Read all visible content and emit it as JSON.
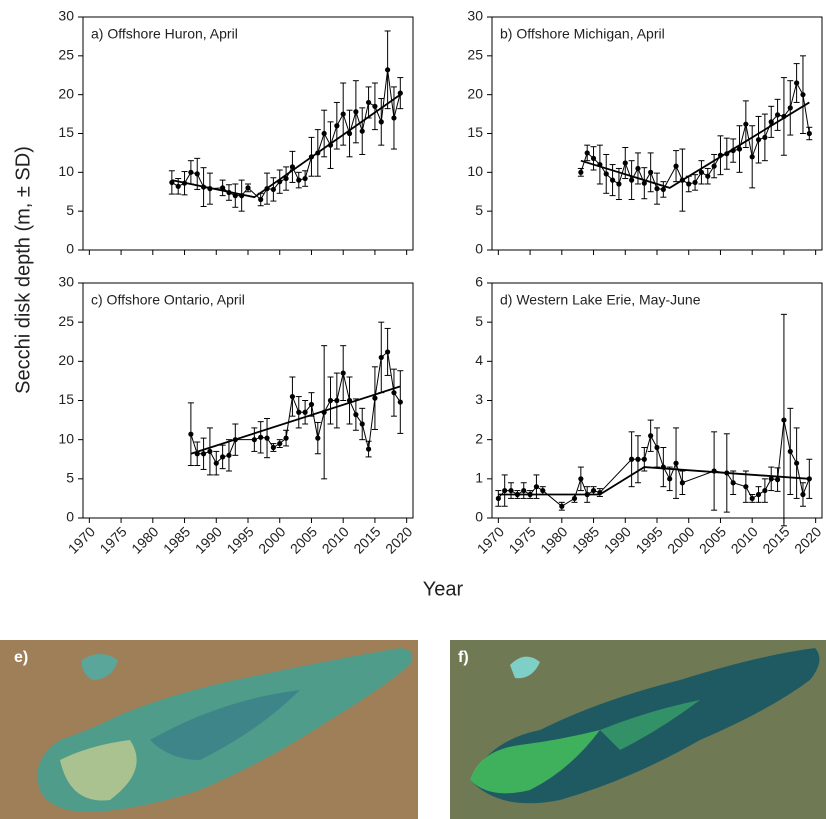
{
  "y_label": "Secchi disk depth (m, ± SD)",
  "x_label": "Year",
  "images": [
    {
      "label": "e)"
    },
    {
      "label": "f)"
    }
  ],
  "chart_data": [
    {
      "type": "line",
      "title": "a) Offshore Huron, April",
      "color": "#000000",
      "xlim": [
        1969,
        2021
      ],
      "xticks": [
        1970,
        1975,
        1980,
        1985,
        1990,
        1995,
        2000,
        2005,
        2010,
        2015,
        2020
      ],
      "ylim": [
        0,
        30
      ],
      "yticks": [
        0,
        5,
        10,
        15,
        20,
        25,
        30
      ],
      "x": [
        1983,
        1984,
        1985,
        1986,
        1987,
        1988,
        1989,
        1991,
        1992,
        1993,
        1994,
        1995,
        1997,
        1998,
        1999,
        2000,
        2001,
        2002,
        2003,
        2004,
        2005,
        2006,
        2007,
        2008,
        2009,
        2010,
        2011,
        2012,
        2013,
        2014,
        2015,
        2016,
        2017,
        2018,
        2019
      ],
      "values": [
        8.7,
        8.2,
        8.6,
        10,
        9.8,
        8.1,
        7.9,
        8,
        7.4,
        7,
        7,
        8,
        6.5,
        7.9,
        7.8,
        8.8,
        9.2,
        10.7,
        9,
        9.2,
        12,
        12.5,
        15,
        13.5,
        16,
        17.5,
        15,
        17.8,
        15.3,
        19,
        18.5,
        16.5,
        23.2,
        17,
        20.2
      ],
      "errors": [
        1.5,
        1,
        1.5,
        1.5,
        2,
        2.5,
        2,
        1,
        1,
        1.5,
        2,
        0.5,
        0.8,
        2,
        1.5,
        1.5,
        1.5,
        2,
        1,
        1,
        2.5,
        3,
        3,
        3,
        3,
        4,
        3,
        4,
        3,
        2,
        3,
        3,
        5,
        4,
        2
      ],
      "trend_x": [
        1983,
        1996,
        2019
      ],
      "trend_values": [
        9,
        6.8,
        20
      ]
    },
    {
      "type": "line",
      "title": "b) Offshore Michigan, April",
      "color": "#000000",
      "xlim": [
        1969,
        2021
      ],
      "xticks": [
        1970,
        1975,
        1980,
        1985,
        1990,
        1995,
        2000,
        2005,
        2010,
        2015,
        2020
      ],
      "ylim": [
        0,
        30
      ],
      "yticks": [
        0,
        5,
        10,
        15,
        20,
        25,
        30
      ],
      "x": [
        1983,
        1984,
        1985,
        1986,
        1987,
        1988,
        1989,
        1990,
        1991,
        1992,
        1993,
        1994,
        1995,
        1996,
        1998,
        1999,
        2000,
        2001,
        2002,
        2003,
        2004,
        2005,
        2006,
        2007,
        2008,
        2009,
        2010,
        2011,
        2012,
        2013,
        2014,
        2015,
        2016,
        2017,
        2018,
        2019
      ],
      "values": [
        10,
        12.5,
        11.8,
        11,
        9.8,
        9,
        8.5,
        11.2,
        9,
        10.5,
        8.6,
        10,
        7.9,
        7.8,
        10.8,
        9,
        8.5,
        8.7,
        10,
        9.5,
        10.8,
        12.2,
        12.4,
        12.8,
        13,
        16.2,
        12,
        14.2,
        14.5,
        16.5,
        17.4,
        17.2,
        18.3,
        21.5,
        20,
        15
      ],
      "errors": [
        0.5,
        1,
        1.5,
        2.5,
        2.5,
        2,
        2,
        2,
        2.5,
        2,
        2,
        2.5,
        2,
        1,
        2,
        4,
        1,
        1,
        1.5,
        1,
        1.5,
        2.5,
        2,
        1.5,
        3,
        3,
        4,
        3,
        3,
        2,
        2,
        5,
        3.5,
        2.5,
        5,
        0.8
      ],
      "trend_x": [
        1983,
        1997,
        2019
      ],
      "trend_values": [
        11.5,
        8,
        19
      ]
    },
    {
      "type": "line",
      "title": "c) Offshore Ontario, April",
      "color": "#000000",
      "xlim": [
        1969,
        2021
      ],
      "xticks": [
        1970,
        1975,
        1980,
        1985,
        1990,
        1995,
        2000,
        2005,
        2010,
        2015,
        2020
      ],
      "ylim": [
        0,
        30
      ],
      "yticks": [
        0,
        5,
        10,
        15,
        20,
        25,
        30
      ],
      "x": [
        1986,
        1987,
        1988,
        1989,
        1990,
        1991,
        1992,
        1993,
        1996,
        1997,
        1998,
        1999,
        2000,
        2001,
        2002,
        2003,
        2004,
        2005,
        2006,
        2007,
        2008,
        2009,
        2010,
        2011,
        2012,
        2013,
        2014,
        2015,
        2016,
        2017,
        2018,
        2019
      ],
      "values": [
        10.7,
        8.2,
        8.2,
        8.5,
        7,
        7.8,
        8,
        10,
        10,
        10.3,
        10.2,
        9,
        9.5,
        10.2,
        15.5,
        13.5,
        13.5,
        14.5,
        10.2,
        13.5,
        15,
        15,
        18.5,
        15,
        13.2,
        12,
        8.8,
        15.3,
        20.5,
        21.2,
        16,
        14.8
      ],
      "errors": [
        4,
        1.5,
        2,
        3,
        1.5,
        1.5,
        2,
        2,
        1.5,
        2,
        2.5,
        0.5,
        0.5,
        1,
        2.5,
        2,
        1.5,
        1.5,
        2,
        8.5,
        3,
        3.5,
        3.5,
        3,
        2,
        2,
        1,
        4,
        4.5,
        3,
        3,
        4
      ],
      "trend_x": [
        1986,
        2019
      ],
      "trend_values": [
        8.2,
        16.8
      ]
    },
    {
      "type": "line",
      "title": "d) Western Lake Erie, May-June",
      "color": "#000000",
      "xlim": [
        1969,
        2021
      ],
      "xticks": [
        1970,
        1975,
        1980,
        1985,
        1990,
        1995,
        2000,
        2005,
        2010,
        2015,
        2020
      ],
      "ylim": [
        0,
        6
      ],
      "yticks": [
        0,
        1,
        2,
        3,
        4,
        5,
        6
      ],
      "x": [
        1970,
        1971,
        1972,
        1973,
        1974,
        1975,
        1976,
        1977,
        1980,
        1982,
        1983,
        1984,
        1985,
        1986,
        1991,
        1992,
        1993,
        1994,
        1995,
        1996,
        1997,
        1998,
        1999,
        2004,
        2006,
        2007,
        2009,
        2010,
        2011,
        2012,
        2013,
        2014,
        2015,
        2016,
        2017,
        2018,
        2019
      ],
      "values": [
        0.5,
        0.7,
        0.7,
        0.6,
        0.7,
        0.6,
        0.8,
        0.7,
        0.3,
        0.5,
        1,
        0.6,
        0.7,
        0.65,
        1.5,
        1.5,
        1.5,
        2.1,
        1.8,
        1.3,
        1,
        1.4,
        0.9,
        1.2,
        1.15,
        0.9,
        0.8,
        0.5,
        0.6,
        0.7,
        1,
        0.98,
        2.5,
        1.7,
        1.4,
        0.6,
        1
      ],
      "errors": [
        0.2,
        0.4,
        0.2,
        0.1,
        0.2,
        0.1,
        0.3,
        0.1,
        0.1,
        0.1,
        0.3,
        0.2,
        0.1,
        0.1,
        0.7,
        0.6,
        0.3,
        0.4,
        0.5,
        0.5,
        0.3,
        0.9,
        0.3,
        1,
        1,
        0.3,
        0.4,
        0.1,
        0.2,
        0.3,
        0.3,
        0.3,
        2.7,
        1.1,
        0.9,
        0.3,
        0.5
      ],
      "trend_x": [
        1970,
        1986,
        1993,
        2019
      ],
      "trend_values": [
        0.6,
        0.6,
        1.3,
        1
      ]
    }
  ]
}
